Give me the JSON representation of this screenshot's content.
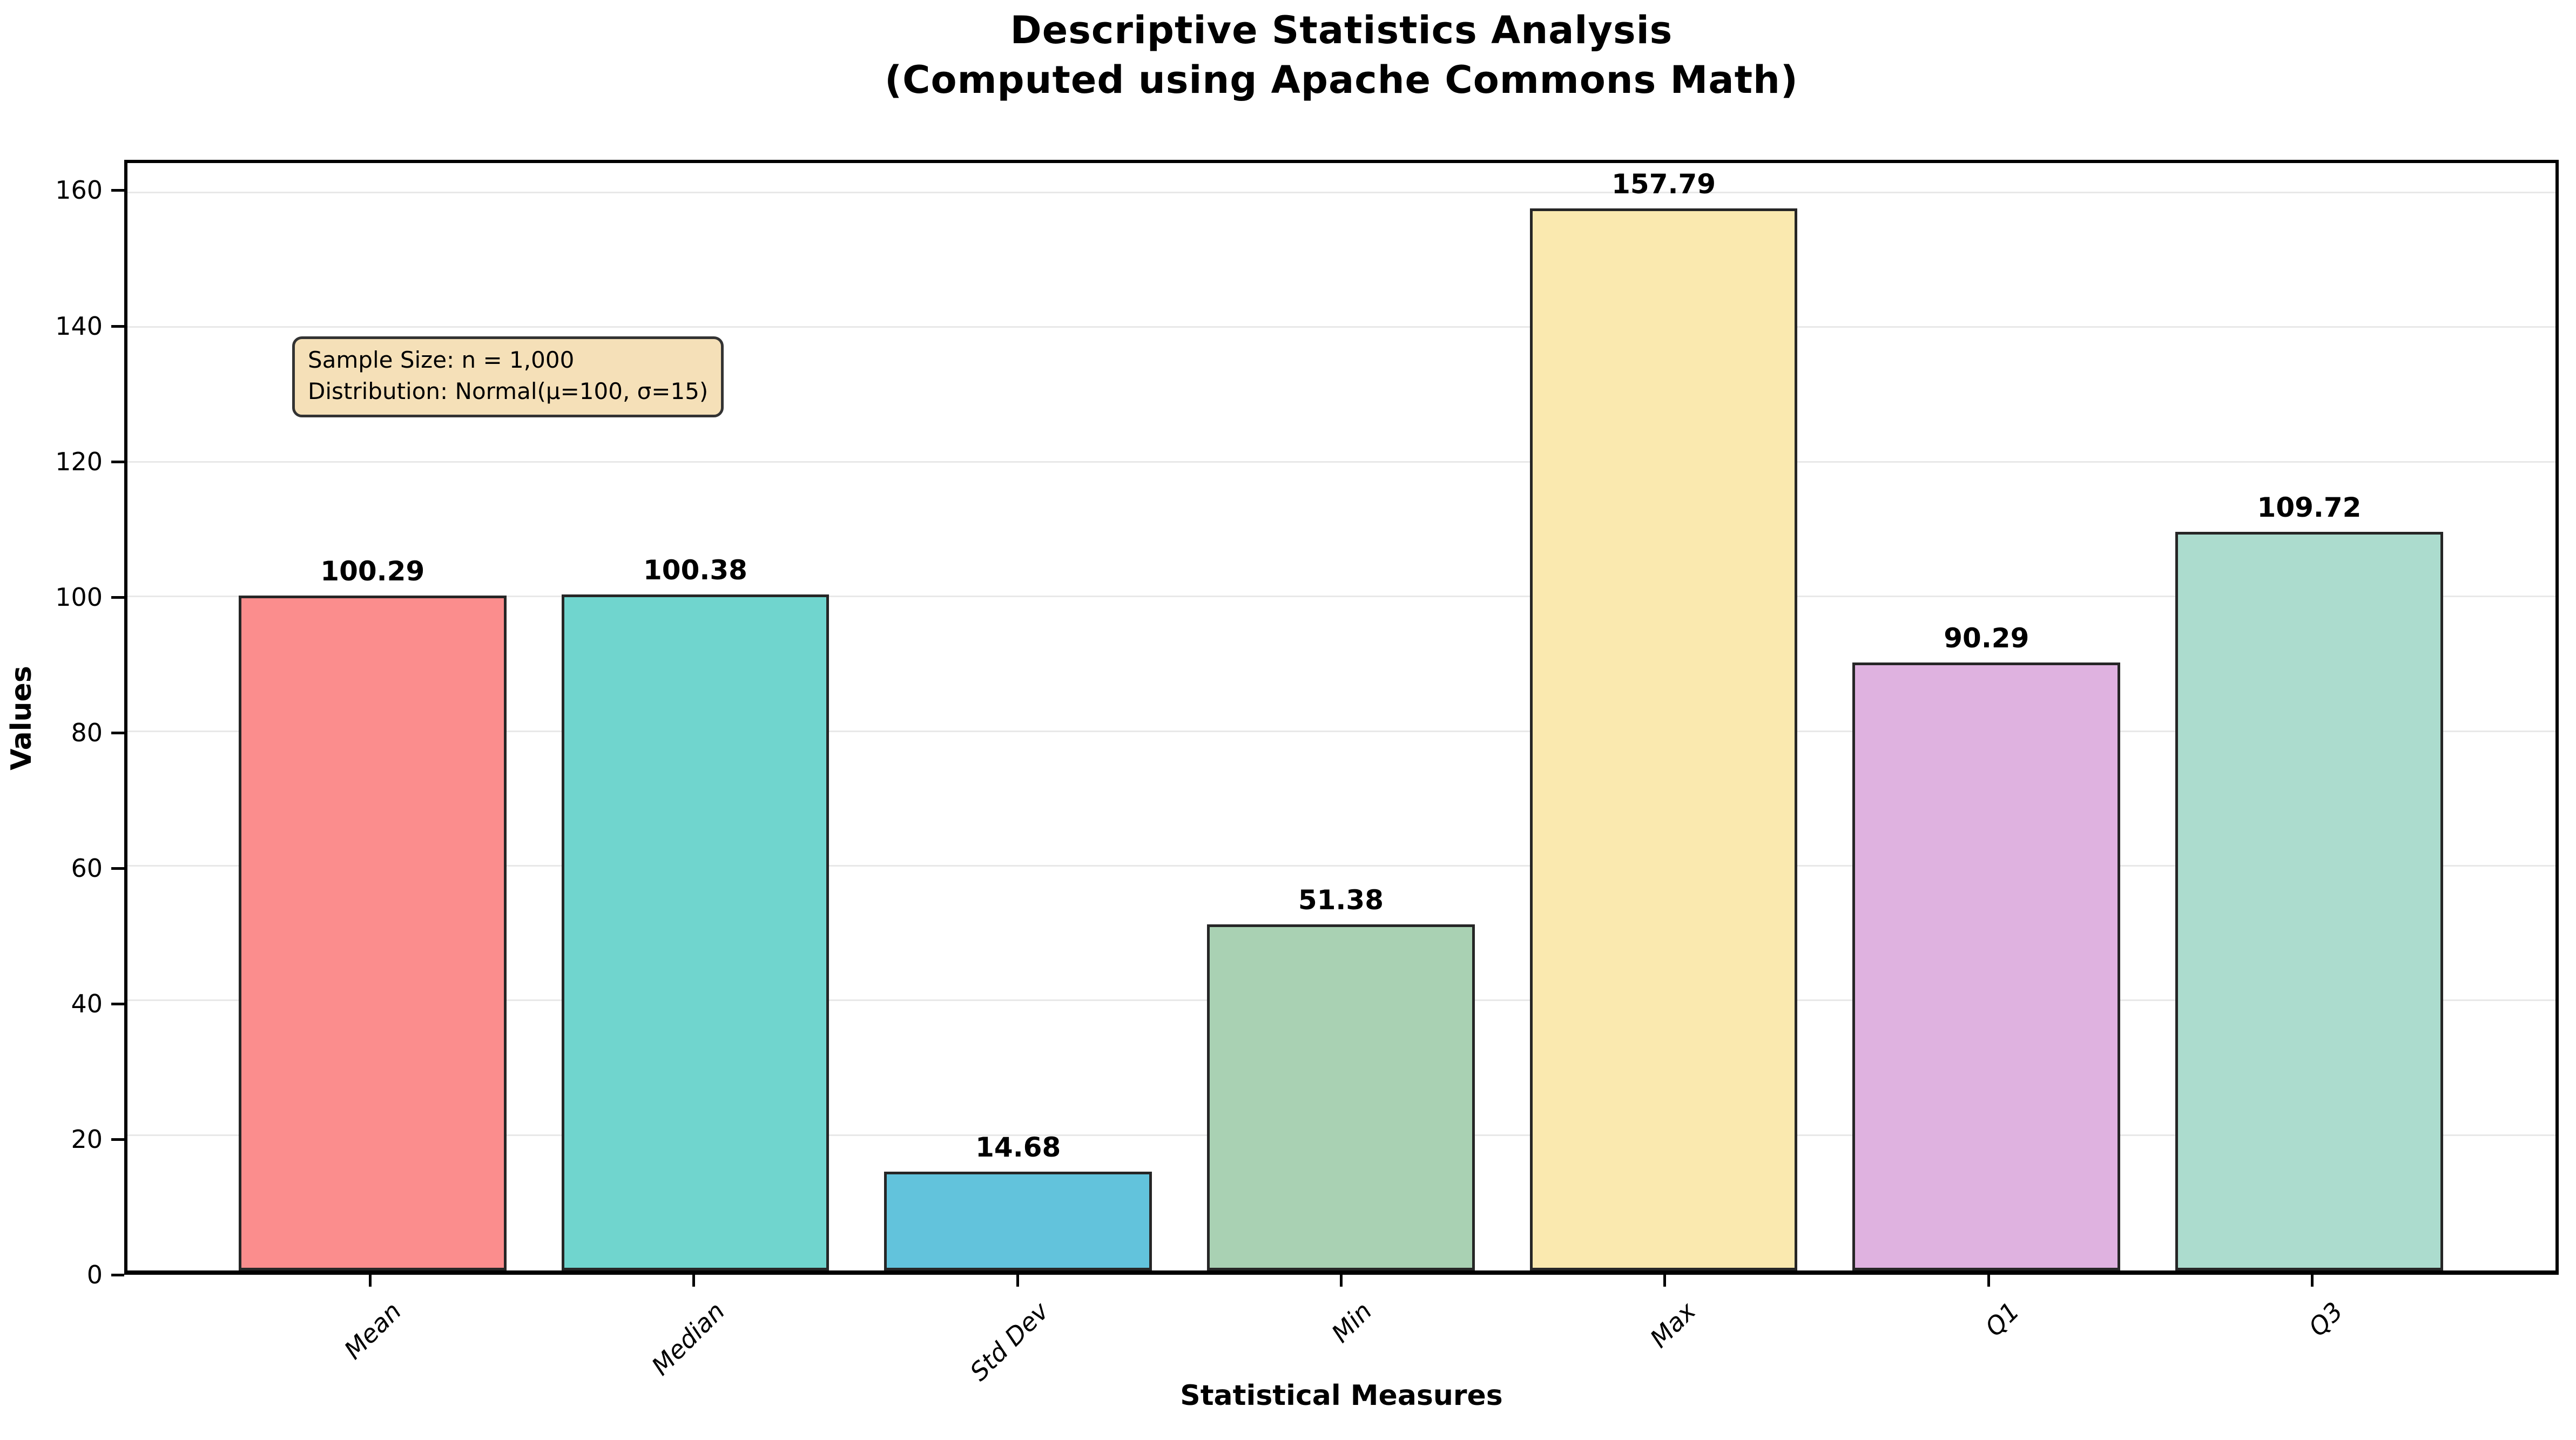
{
  "title": {
    "line1": "Descriptive Statistics Analysis",
    "line2": "(Computed using Apache Commons Math)"
  },
  "annotation": {
    "line1": "Sample Size: n = 1,000",
    "line2": "Distribution: Normal(μ=100, σ=15)"
  },
  "chart_data": {
    "type": "bar",
    "title": "Descriptive Statistics Analysis\n(Computed using Apache Commons Math)",
    "xlabel": "Statistical Measures",
    "ylabel": "Values",
    "categories": [
      "Mean",
      "Median",
      "Std Dev",
      "Min",
      "Max",
      "Q1",
      "Q3"
    ],
    "values": [
      100.29,
      100.38,
      14.68,
      51.38,
      157.79,
      90.29,
      109.72
    ],
    "value_labels": [
      "100.29",
      "100.38",
      "14.68",
      "51.38",
      "157.79",
      "90.29",
      "109.72"
    ],
    "bar_colors": [
      "#fb8d8d",
      "#70d5ce",
      "#62c3dc",
      "#a9d1b3",
      "#fae9af",
      "#dfb2e0",
      "#acdcce"
    ],
    "edge_color": "#262626",
    "ylim": [
      0,
      164.5
    ],
    "y_ticks": [
      0,
      20,
      40,
      60,
      80,
      100,
      120,
      140,
      160
    ],
    "grid": true,
    "grid_color": "#e8e8e8",
    "legend_position": "none",
    "annotations": [
      "Sample Size: n = 1,000",
      "Distribution: Normal(μ=100, σ=15)"
    ]
  },
  "colors": {
    "background": "#ffffff",
    "spine": "#000000",
    "annotation_bg": "#f5e0b8",
    "annotation_border": "#333333",
    "text": "#000000"
  }
}
